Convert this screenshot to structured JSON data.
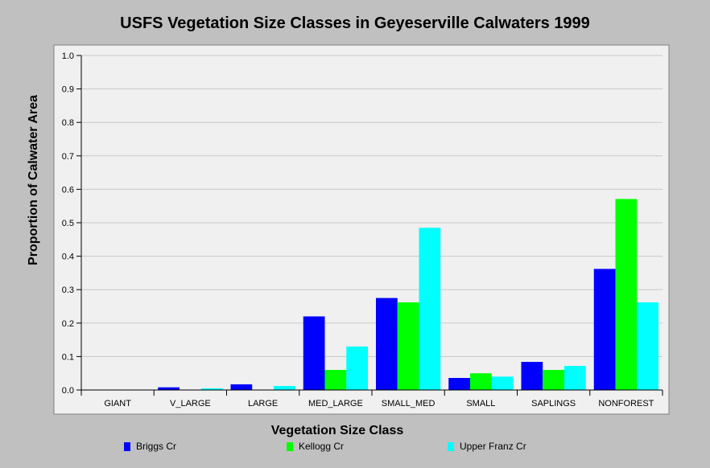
{
  "chart_data": {
    "type": "bar",
    "title": "USFS Vegetation Size Classes in Geyeserville Calwaters 1999",
    "xlabel": "Vegetation Size Class",
    "ylabel": "Proportion of Calwater Area",
    "ylim": [
      0,
      1.0
    ],
    "yticks": [
      "0.0",
      "0.1",
      "0.2",
      "0.3",
      "0.4",
      "0.5",
      "0.6",
      "0.7",
      "0.8",
      "0.9",
      "1.0"
    ],
    "grid": true,
    "legend_position": "bottom",
    "categories": [
      "GIANT",
      "V_LARGE",
      "LARGE",
      "MED_LARGE",
      "SMALL_MED",
      "SMALL",
      "SAPLINGS",
      "NONFOREST"
    ],
    "series": [
      {
        "name": "Briggs Cr",
        "color": "#0000ff",
        "values": [
          0.0,
          0.008,
          0.017,
          0.22,
          0.275,
          0.036,
          0.084,
          0.362
        ]
      },
      {
        "name": "Kellogg Cr",
        "color": "#00ff00",
        "values": [
          0.0,
          0.0,
          0.0,
          0.06,
          0.262,
          0.05,
          0.06,
          0.571
        ]
      },
      {
        "name": "Upper Franz Cr",
        "color": "#00ffff",
        "values": [
          0.0,
          0.005,
          0.012,
          0.13,
          0.485,
          0.04,
          0.072,
          0.262
        ]
      }
    ]
  }
}
